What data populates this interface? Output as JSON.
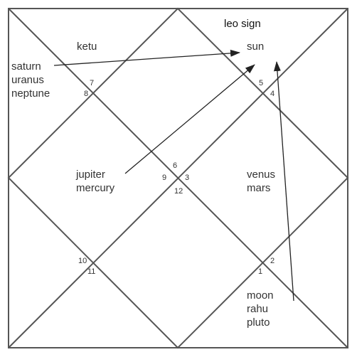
{
  "title": "leo sign",
  "colors": {
    "line": "#555555",
    "text": "#333333",
    "arrow": "#222222"
  },
  "houses": {
    "h1": "1",
    "h2": "2",
    "h3": "3",
    "h4": "4",
    "h5": "5",
    "h6": "6",
    "h7": "7",
    "h8": "8",
    "h9": "9",
    "h10": "10",
    "h11": "11",
    "h12": "12"
  },
  "planets": {
    "ketu": "ketu",
    "sun": "sun",
    "saturn": "saturn",
    "uranus": "uranus",
    "neptune": "neptune",
    "jupiter": "jupiter",
    "mercury": "mercury",
    "venus": "venus",
    "mars": "mars",
    "moon": "moon",
    "rahu": "rahu",
    "pluto": "pluto"
  }
}
